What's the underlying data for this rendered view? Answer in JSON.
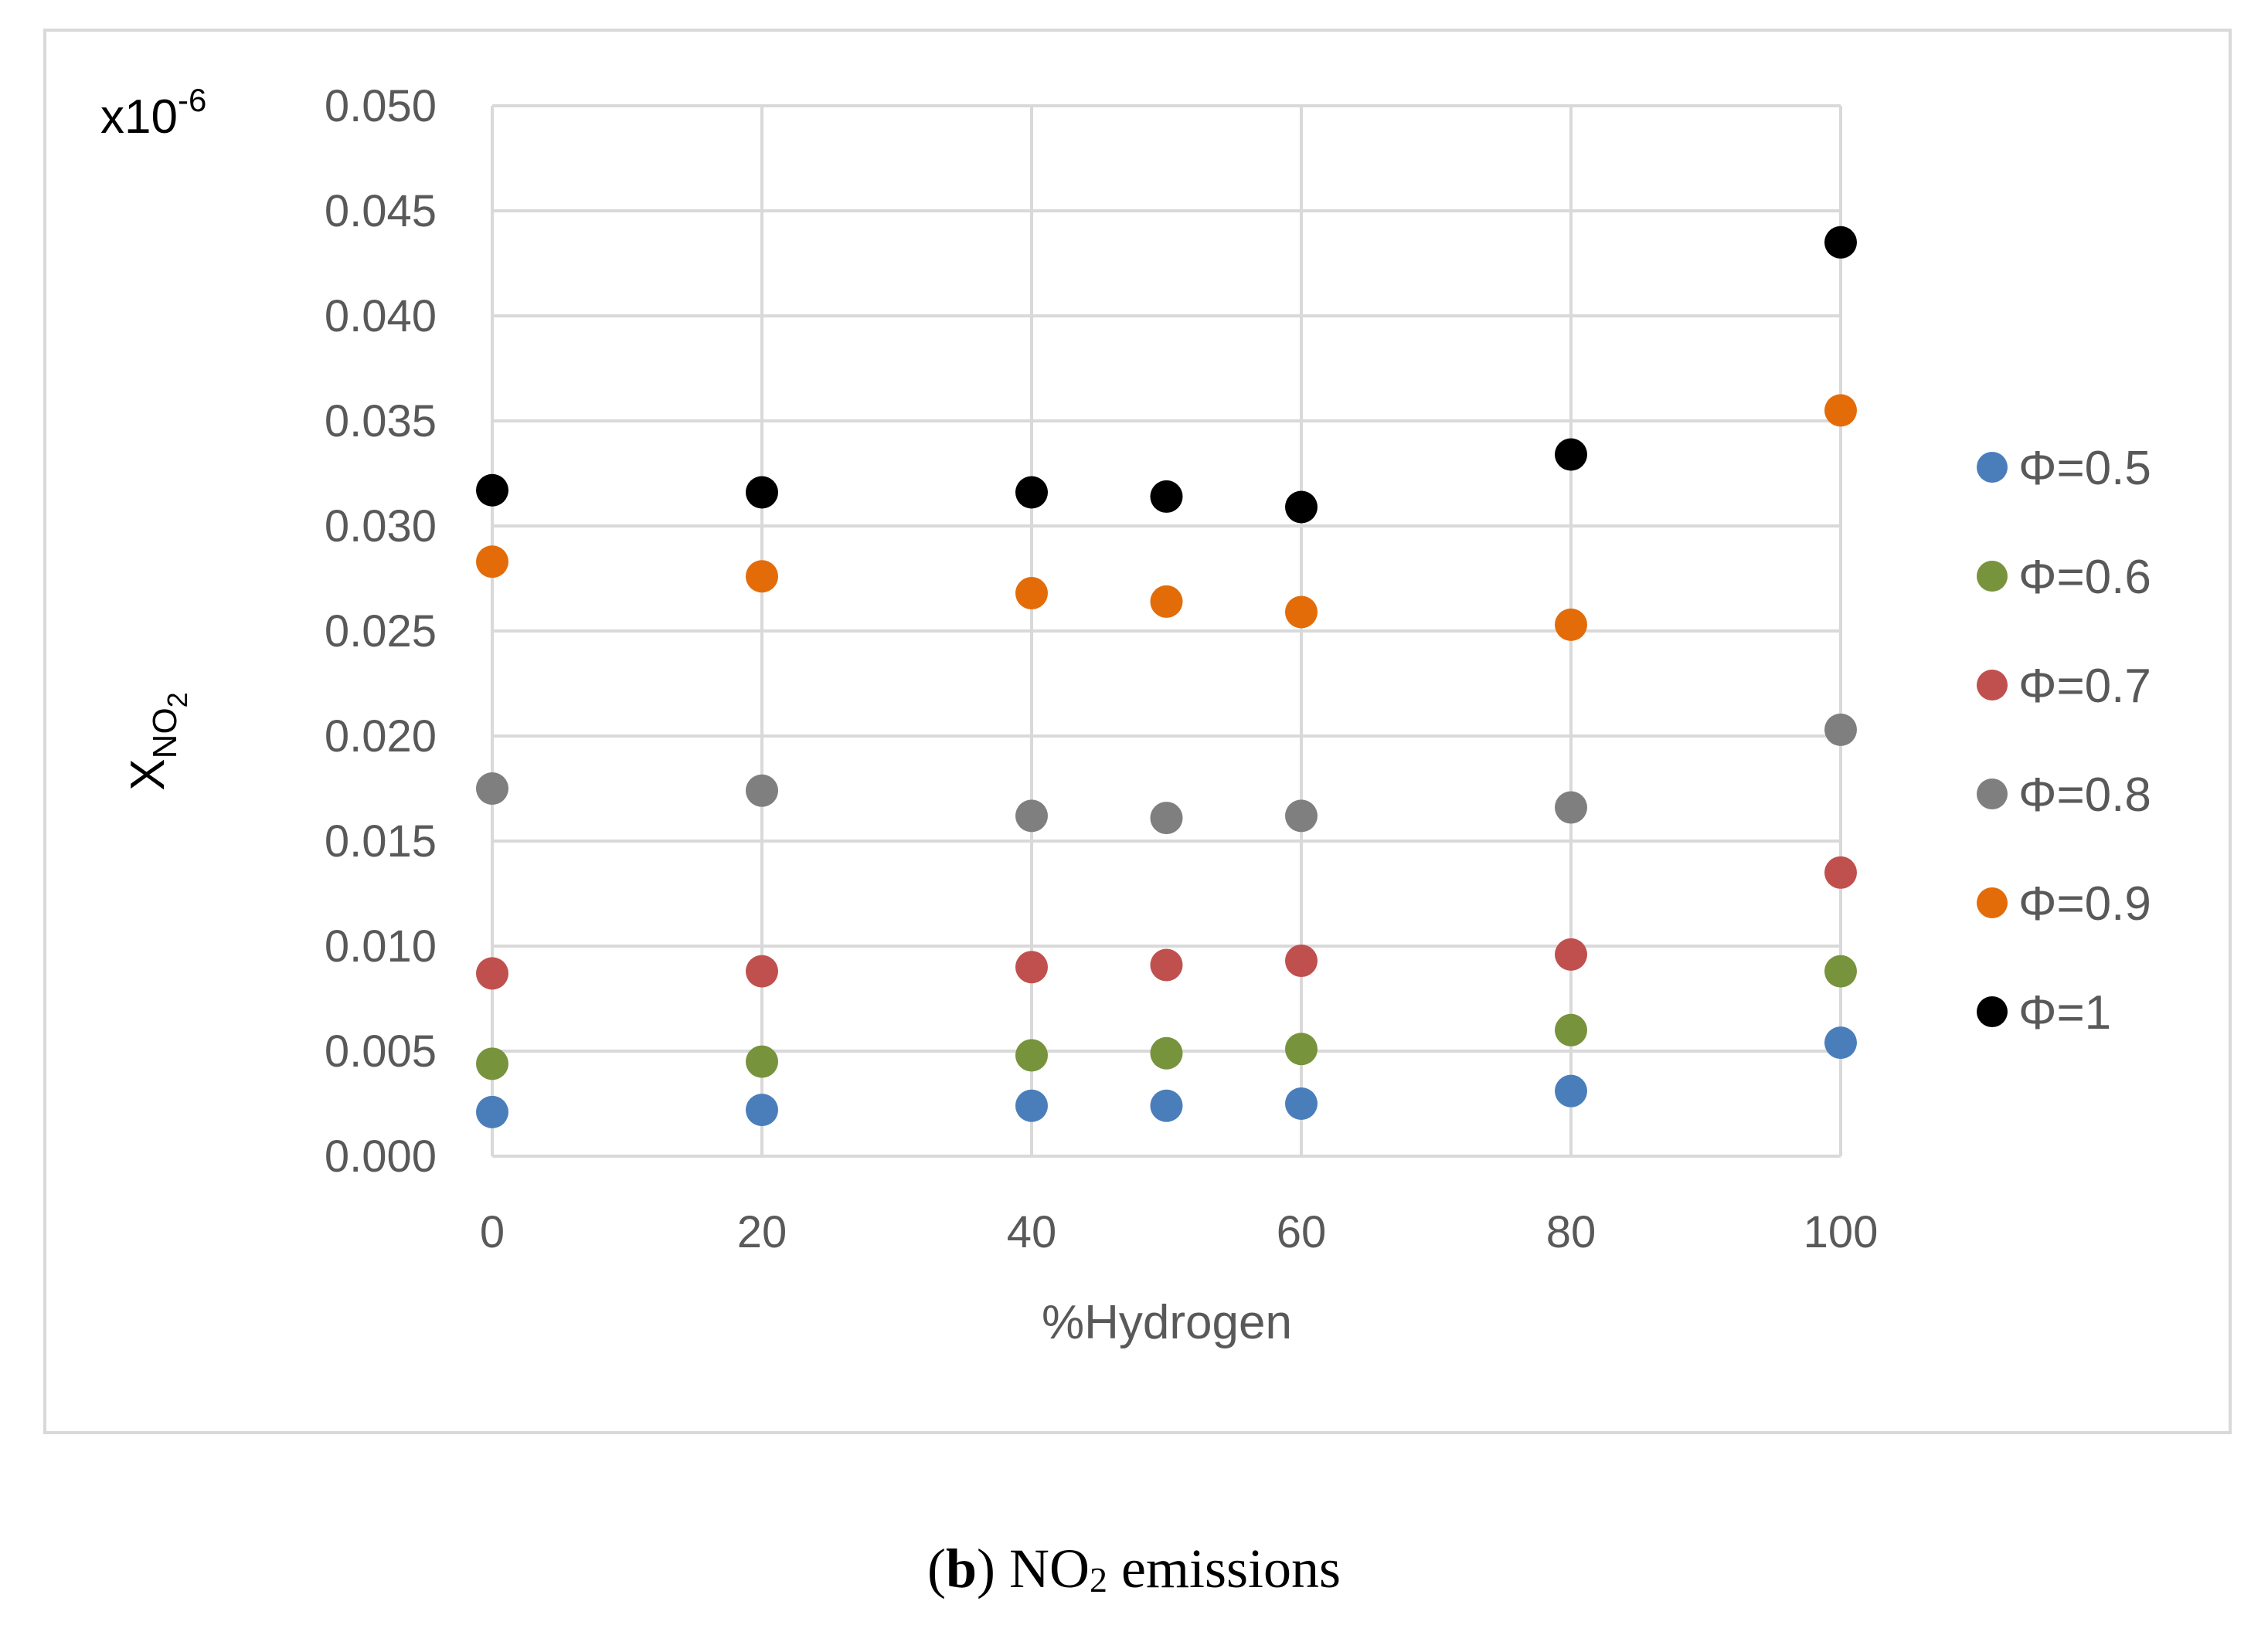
{
  "chart_data": {
    "type": "scatter",
    "xlabel": "%Hydrogen",
    "ylabel_main": "X",
    "ylabel_sub": "NO",
    "ylabel_subsub": "2",
    "y_multiplier_base": "x10",
    "y_multiplier_exp": "-6",
    "x": [
      0,
      20,
      40,
      50,
      60,
      80,
      100
    ],
    "x_ticks": [
      "0",
      "20",
      "40",
      "60",
      "80",
      "100"
    ],
    "y_ticks": [
      "0.000",
      "0.005",
      "0.010",
      "0.015",
      "0.020",
      "0.025",
      "0.030",
      "0.035",
      "0.040",
      "0.045",
      "0.050"
    ],
    "xlim": [
      0,
      100
    ],
    "ylim": [
      0,
      0.05
    ],
    "grid": true,
    "legend_position": "right",
    "series": [
      {
        "name": "Φ=0.5",
        "color": "#4a7ebb",
        "values": [
          0.0021,
          0.0022,
          0.0024,
          0.0024,
          0.0025,
          0.0031,
          0.0054
        ]
      },
      {
        "name": "Φ=0.6",
        "color": "#77933c",
        "values": [
          0.0044,
          0.0045,
          0.0048,
          0.0049,
          0.0051,
          0.006,
          0.0088
        ]
      },
      {
        "name": "Φ=0.7",
        "color": "#c0504d",
        "values": [
          0.0087,
          0.0088,
          0.009,
          0.0091,
          0.0093,
          0.0096,
          0.0135
        ]
      },
      {
        "name": "Φ=0.8",
        "color": "#7f7f7f",
        "values": [
          0.0175,
          0.0174,
          0.0162,
          0.0161,
          0.0162,
          0.0166,
          0.0203
        ]
      },
      {
        "name": "Φ=0.9",
        "color": "#e36c09",
        "values": [
          0.0283,
          0.0276,
          0.0268,
          0.0264,
          0.0259,
          0.0253,
          0.0355
        ]
      },
      {
        "name": "Φ=1",
        "color": "#000000",
        "values": [
          0.0317,
          0.0316,
          0.0316,
          0.0314,
          0.0309,
          0.0334,
          0.0435
        ]
      }
    ]
  },
  "caption": {
    "open_paren": "(",
    "letter": "b",
    "close_paren": ")",
    "text": " NO",
    "subscript": "2",
    "tail": " emissions"
  }
}
